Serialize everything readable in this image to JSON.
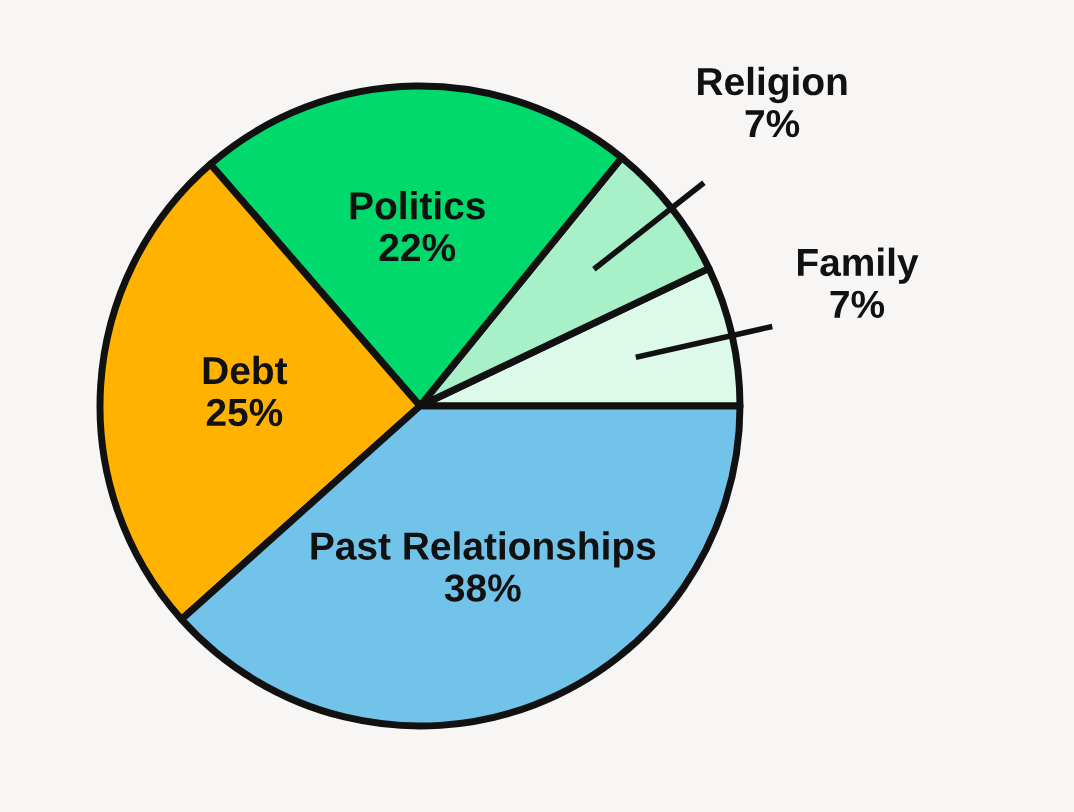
{
  "chart_data": {
    "type": "pie",
    "categories": [
      "Family",
      "Religion",
      "Politics",
      "Debt",
      "Past Relationships"
    ],
    "values": [
      7,
      7,
      22,
      25,
      38
    ],
    "value_labels": [
      "7%",
      "7%",
      "22%",
      "25%",
      "38%"
    ],
    "colors": [
      "#dcf9ea",
      "#a8f0c8",
      "#00d96b",
      "#ffb200",
      "#72c3ea"
    ],
    "legend": false
  }
}
